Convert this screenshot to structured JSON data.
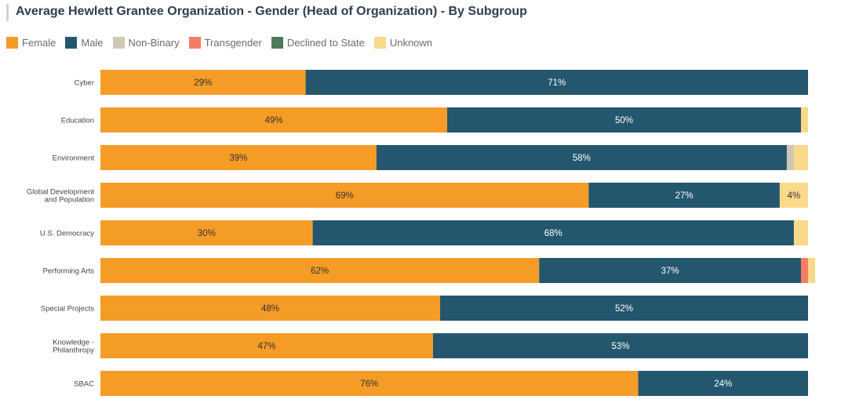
{
  "title": "Average Hewlett Grantee Organization - Gender (Head of Organization) - By Subgroup",
  "legend": [
    {
      "label": "Female",
      "color": "#f59c27"
    },
    {
      "label": "Male",
      "color": "#24576e"
    },
    {
      "label": "Non-Binary",
      "color": "#d0c8b4"
    },
    {
      "label": "Transgender",
      "color": "#f47d66"
    },
    {
      "label": "Declined to State",
      "color": "#4a7c59"
    },
    {
      "label": "Unknown",
      "color": "#fbd98b"
    }
  ],
  "chart_data": {
    "type": "bar",
    "orientation": "horizontal",
    "stacked": true,
    "title": "Average Hewlett Grantee Organization - Gender (Head of Organization) - By Subgroup",
    "categories": [
      [
        "Cyber"
      ],
      [
        "Education"
      ],
      [
        "Environment"
      ],
      [
        "Global Development",
        "and Population"
      ],
      [
        "U.S. Democracy"
      ],
      [
        "Performing Arts"
      ],
      [
        "Special Projects"
      ],
      [
        "Knowledge -",
        "Philanthropy"
      ],
      [
        "SBAC"
      ]
    ],
    "series": [
      {
        "name": "Female",
        "color": "#f59c27",
        "values": [
          29,
          49,
          39,
          69,
          30,
          62,
          48,
          47,
          76
        ]
      },
      {
        "name": "Male",
        "color": "#24576e",
        "values": [
          71,
          50,
          58,
          27,
          68,
          37,
          52,
          53,
          24
        ]
      },
      {
        "name": "Non-Binary",
        "color": "#d0c8b4",
        "values": [
          0,
          0,
          1,
          0,
          0,
          0,
          0,
          0,
          0
        ]
      },
      {
        "name": "Transgender",
        "color": "#f47d66",
        "values": [
          0,
          0,
          0,
          0,
          0,
          1,
          0,
          0,
          0
        ]
      },
      {
        "name": "Declined to State",
        "color": "#4a7c59",
        "values": [
          0,
          0,
          0,
          0,
          0,
          0,
          0,
          0,
          0
        ]
      },
      {
        "name": "Unknown",
        "color": "#fbd98b",
        "values": [
          0,
          1,
          2,
          4,
          2,
          1,
          0,
          0,
          0
        ]
      }
    ],
    "data_labels": [
      [
        "29%",
        "71%"
      ],
      [
        "49%",
        "50%"
      ],
      [
        "39%",
        "58%"
      ],
      [
        "69%",
        "27%",
        "4%"
      ],
      [
        "30%",
        "68%"
      ],
      [
        "62%",
        "37%"
      ],
      [
        "48%",
        "52%"
      ],
      [
        "47%",
        "53%"
      ],
      [
        "76%",
        "24%"
      ]
    ],
    "xlim": [
      0,
      100
    ],
    "grid": false,
    "legend_position": "top-left"
  }
}
